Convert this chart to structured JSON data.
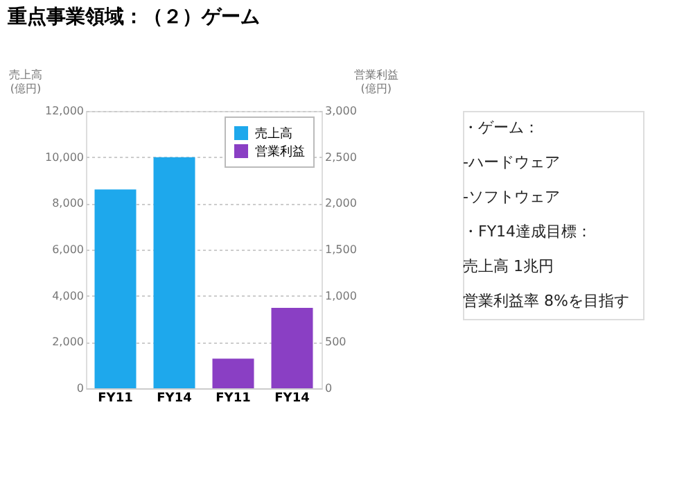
{
  "chart_data": {
    "type": "bar",
    "title": "重点事業領域：（２）ゲーム",
    "categories": [
      "FY11",
      "FY14",
      "FY11",
      "FY14"
    ],
    "series": [
      {
        "name": "売上高",
        "color": "#1ea8ec",
        "values": [
          8600,
          10000,
          null,
          null
        ]
      },
      {
        "name": "営業利益",
        "color": "#8a3fc4",
        "values": [
          null,
          null,
          320,
          870
        ],
        "axis": "y2"
      }
    ],
    "ylabel": "売上高\n(億円)",
    "y2label": "営業利益\n(億円)",
    "ylim": [
      0,
      12000
    ],
    "yticks": [
      0,
      {
        "value": 2000,
        "label": "2,000"
      },
      {
        "value": 4000,
        "label": "4,000"
      },
      {
        "value": 6000,
        "label": "6,000"
      },
      {
        "value": 8000,
        "label": "8,000"
      },
      {
        "value": 10000,
        "label": "10,000"
      },
      {
        "value": 12000,
        "label": "12,000"
      }
    ],
    "y2lim": [
      0,
      3000
    ],
    "y2ticks": [
      0,
      500,
      {
        "value": 1000,
        "label": "1,000"
      },
      {
        "value": 1500,
        "label": "1,500"
      },
      {
        "value": 2000,
        "label": "2,000"
      },
      {
        "value": 2500,
        "label": "2,500"
      },
      {
        "value": 3000,
        "label": "3,000"
      }
    ],
    "grid": "y",
    "legend": "top right",
    "annotations": [
      "・ゲーム：",
      "-ハードウェア",
      "-ソフトウェア",
      "・FY14達成目標：",
      "売上高 1兆円",
      "営業利益率 8%を目指す"
    ]
  }
}
